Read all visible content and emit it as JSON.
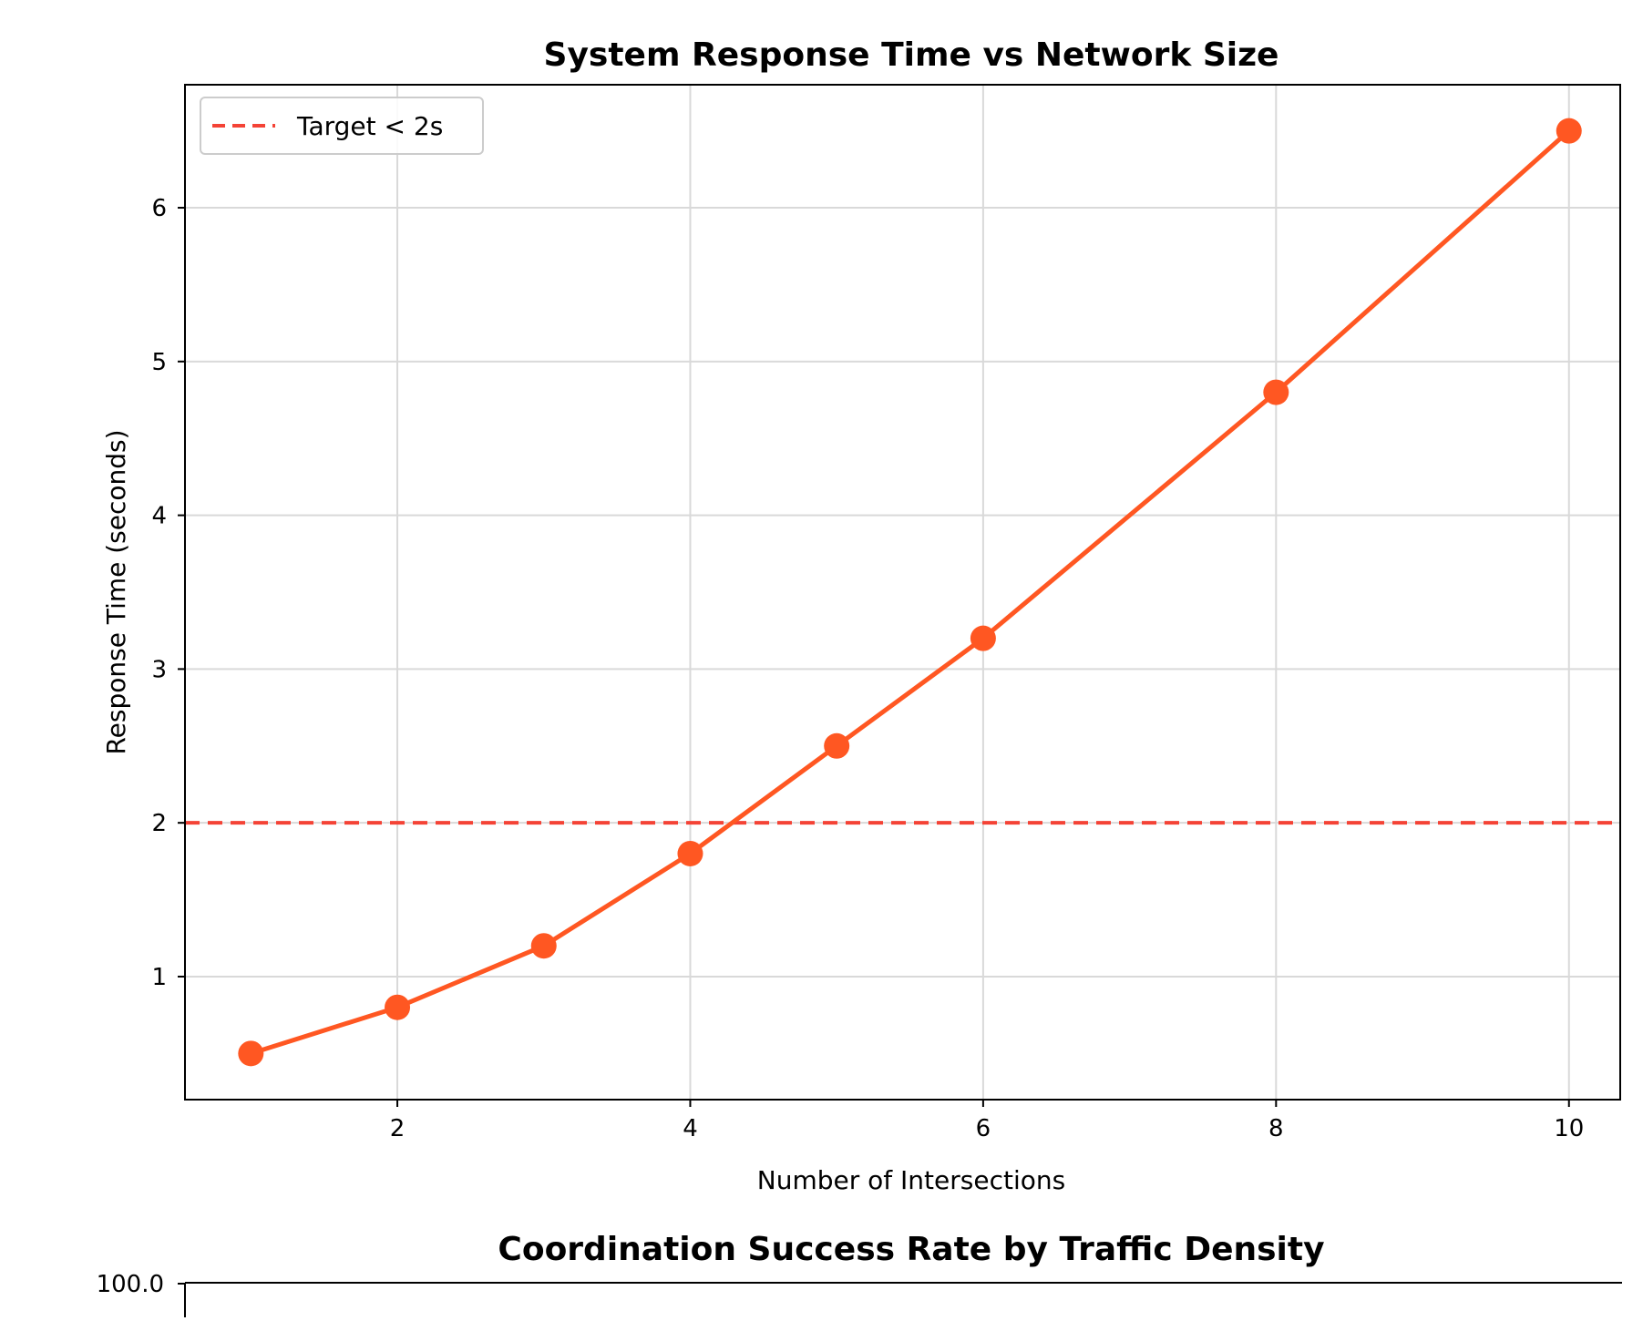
{
  "chart_data": [
    {
      "type": "line",
      "title": "System Response Time vs Network Size",
      "xlabel": "Number of Intersections",
      "ylabel": "Response Time (seconds)",
      "xlim": [
        0.55,
        10.35
      ],
      "ylim": [
        0.2,
        6.8
      ],
      "xticks": [
        2,
        4,
        6,
        8,
        10
      ],
      "yticks": [
        1,
        2,
        3,
        4,
        5,
        6
      ],
      "grid": true,
      "legend_position": "top-left",
      "series": [
        {
          "x": [
            1,
            2,
            3,
            4,
            5,
            6,
            8,
            10
          ],
          "y": [
            0.5,
            0.8,
            1.2,
            1.8,
            2.5,
            3.2,
            4.8,
            6.5
          ],
          "color": "#ff5722",
          "marker": "circle"
        }
      ],
      "reference_lines": [
        {
          "name": "Target < 2s",
          "orientation": "horizontal",
          "y": 2,
          "color": "#f44336",
          "style": "dashed"
        }
      ]
    },
    {
      "type": "bar",
      "title": "Coordination Success Rate by Traffic Density",
      "ytick_top": "100.0"
    }
  ]
}
